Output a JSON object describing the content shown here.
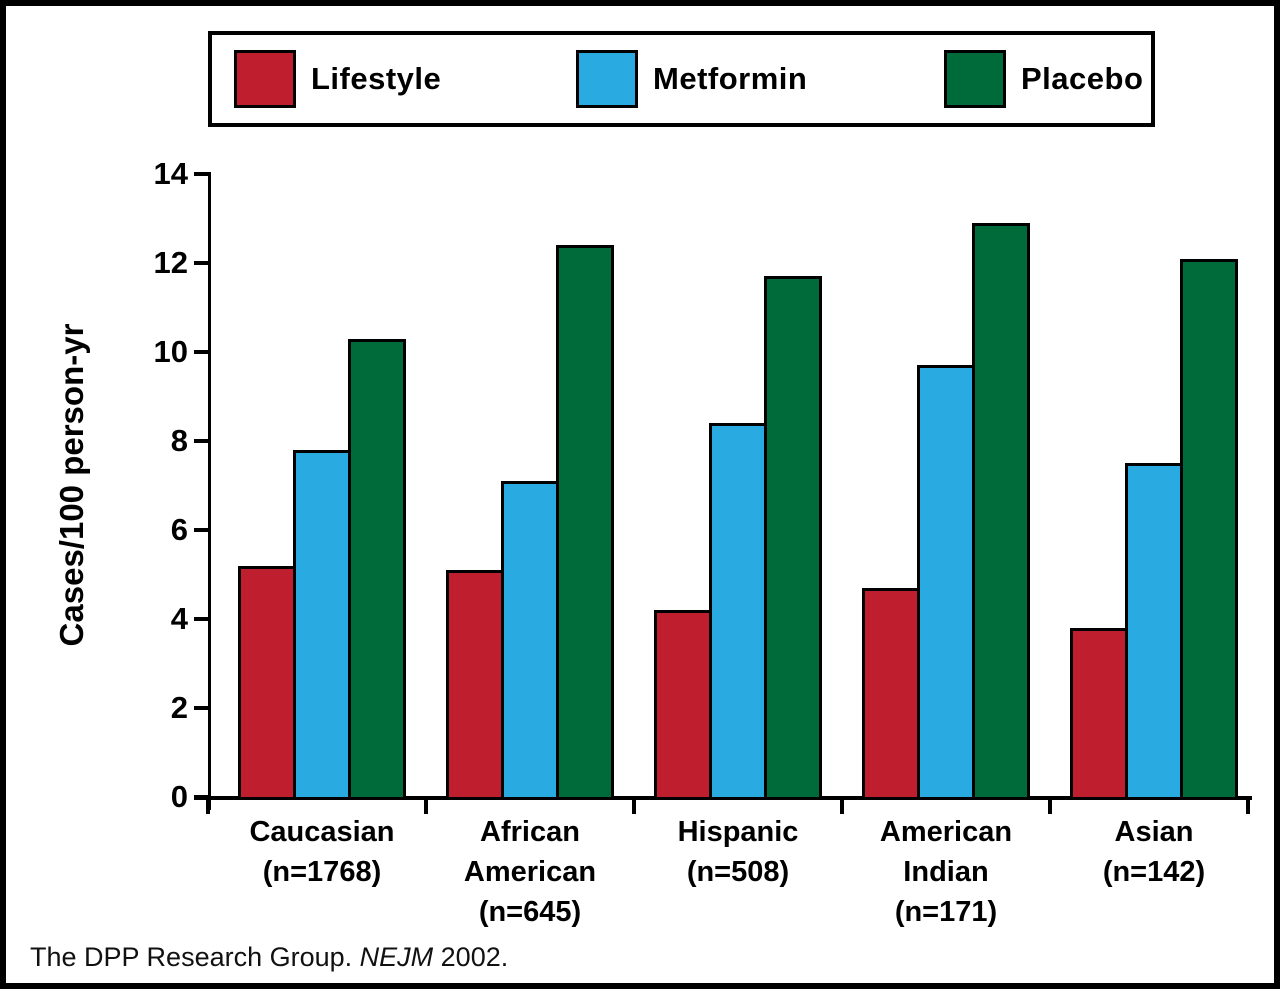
{
  "page": {
    "footer_prefix": "The DPP Research Group. ",
    "footer_journal": "NEJM",
    "footer_suffix": " 2002."
  },
  "chart_data": {
    "type": "bar",
    "title": "",
    "xlabel": "",
    "ylabel": "Cases/100 person-yr",
    "ylim": [
      0,
      14
    ],
    "yticks": [
      0,
      2,
      4,
      6,
      8,
      10,
      12,
      14
    ],
    "grid": false,
    "legend_position": "top",
    "categories": [
      "Caucasian (n=1768)",
      "African American (n=645)",
      "Hispanic (n=508)",
      "American Indian (n=171)",
      "Asian (n=142)"
    ],
    "category_lines": [
      [
        "Caucasian",
        "(n=1768)"
      ],
      [
        "African",
        "American",
        "(n=645)"
      ],
      [
        "Hispanic",
        "(n=508)"
      ],
      [
        "American",
        "Indian",
        "(n=171)"
      ],
      [
        "Asian",
        "(n=142)"
      ]
    ],
    "series": [
      {
        "name": "Lifestyle",
        "color": "#BE1E2D",
        "values": [
          5.2,
          5.1,
          4.2,
          4.7,
          3.8
        ]
      },
      {
        "name": "Metformin",
        "color": "#29ABE2",
        "values": [
          7.8,
          7.1,
          8.4,
          9.7,
          7.5
        ]
      },
      {
        "name": "Placebo",
        "color": "#006B3A",
        "values": [
          10.3,
          12.4,
          11.7,
          12.9,
          12.1
        ]
      }
    ]
  }
}
